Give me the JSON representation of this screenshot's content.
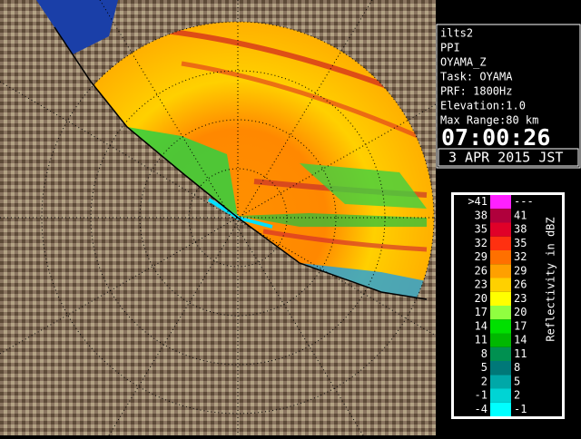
{
  "info": {
    "lines": [
      "ilts2",
      "PPI",
      "OYAMA_Z",
      "Task: OYAMA",
      "PRF: 1800Hz",
      "Elevation:1.0",
      "Max Range:80 km"
    ],
    "time": "07:00:26",
    "date": "3 APR 2015 JST"
  },
  "legend": {
    "title": "Reflectivity in dBZ",
    "rows": [
      {
        "low": ">41",
        "high": "---",
        "color": "#ff20ff"
      },
      {
        "low": "38",
        "high": "41",
        "color": "#b0003c"
      },
      {
        "low": "35",
        "high": "38",
        "color": "#e00028"
      },
      {
        "low": "32",
        "high": "35",
        "color": "#ff3010"
      },
      {
        "low": "29",
        "high": "32",
        "color": "#ff7000"
      },
      {
        "low": "26",
        "high": "29",
        "color": "#ffa000"
      },
      {
        "low": "23",
        "high": "26",
        "color": "#ffd000"
      },
      {
        "low": "20",
        "high": "23",
        "color": "#ffff00"
      },
      {
        "low": "17",
        "high": "20",
        "color": "#90ff40"
      },
      {
        "low": "14",
        "high": "17",
        "color": "#00e000"
      },
      {
        "low": "11",
        "high": "14",
        "color": "#00b800"
      },
      {
        "low": "8",
        "high": "11",
        "color": "#009050"
      },
      {
        "low": "5",
        "high": "8",
        "color": "#007878"
      },
      {
        "low": "2",
        "high": "5",
        "color": "#00a8a8"
      },
      {
        "low": "-1",
        "high": "2",
        "color": "#00d4d4"
      },
      {
        "low": "-4",
        "high": "-1",
        "color": "#00ffff"
      }
    ]
  }
}
